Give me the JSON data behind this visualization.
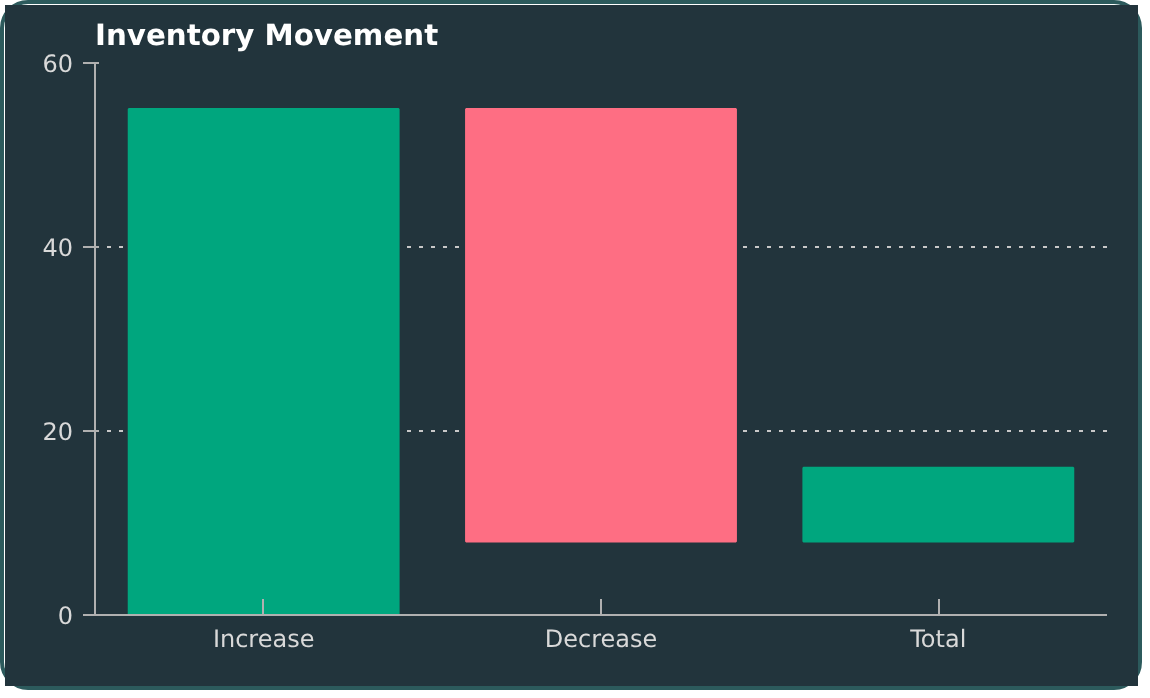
{
  "chart_data": {
    "type": "bar",
    "title": "Inventory Movement",
    "categories": [
      "Increase",
      "Decrease",
      "Total"
    ],
    "values": [
      55,
      -47,
      8
    ],
    "base": [
      0,
      55,
      8
    ],
    "colors": [
      "#00a67e",
      "#fe6e83",
      "#00a67e"
    ],
    "ylim": [
      0,
      60
    ],
    "yticks": [
      0,
      20,
      40,
      60
    ],
    "grid": "y"
  }
}
